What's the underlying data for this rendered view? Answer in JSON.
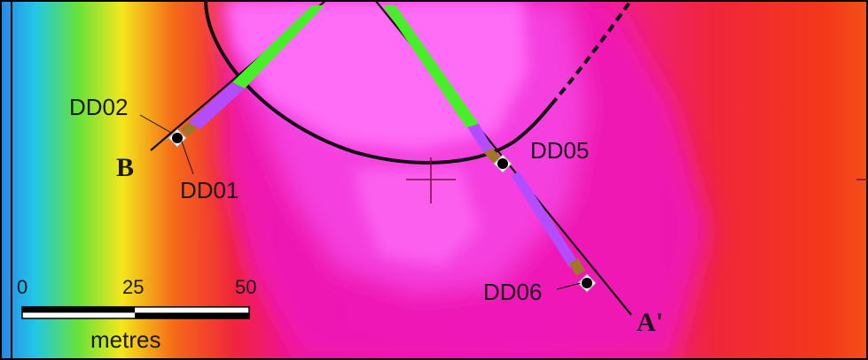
{
  "map": {
    "labels": {
      "drillholes": [
        "DD02",
        "DD01",
        "DD05",
        "DD06"
      ],
      "section_ends": [
        "B",
        "A'"
      ]
    },
    "scale_bar": {
      "ticks": [
        "0",
        "25",
        "50"
      ],
      "unit": "metres"
    },
    "colors": {
      "anomaly_center": "#ff6cf5",
      "anomaly_high": "#f53fdf",
      "magenta": "#f015b8",
      "red": "#f0253c",
      "orange": "#f56a18",
      "yellow": "#f3e71c",
      "green": "#67e23a",
      "cyan": "#21c6e7",
      "blue": "#2b83e6",
      "green_segment": "#48ee2a",
      "purple_segment": "#b34dff",
      "brown_segment": "#a07628"
    }
  }
}
